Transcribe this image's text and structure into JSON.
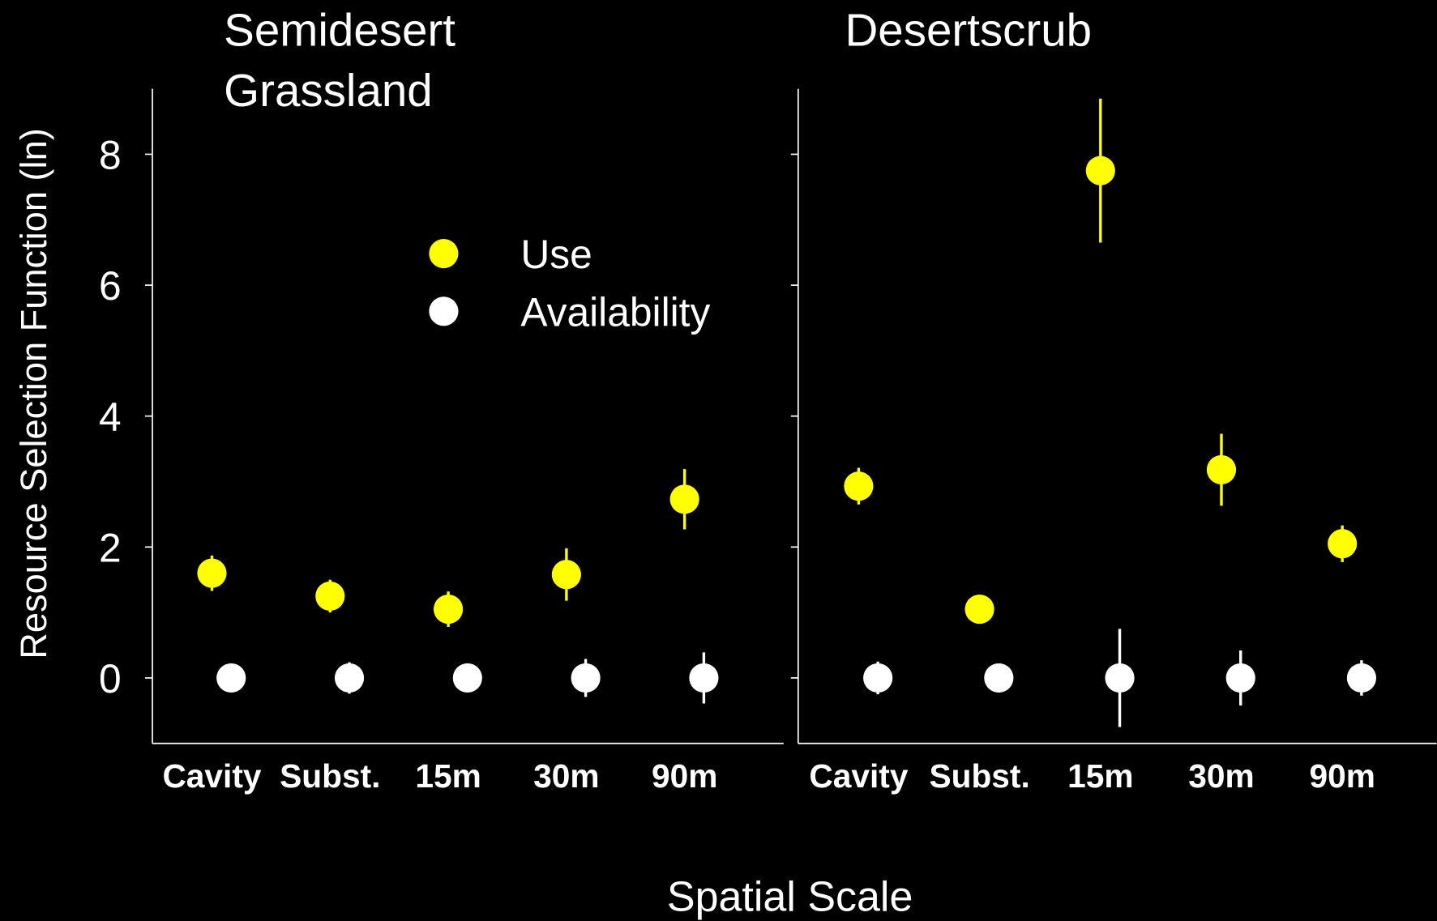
{
  "x_label": "Spatial Scale",
  "chart_data": [
    {
      "type": "dot",
      "title": "Semidesert Grassland",
      "y_label": "Resource Selection Function (ln)",
      "categories": [
        "Cavity",
        "Subst.",
        "15m",
        "30m",
        "90m"
      ],
      "series": [
        {
          "name": "Use",
          "color": "#ffff00",
          "values": [
            1.6,
            1.25,
            1.05,
            1.58,
            2.73
          ],
          "errors": [
            0.27,
            0.25,
            0.27,
            0.4,
            0.46
          ]
        },
        {
          "name": "Availability",
          "color": "#ffffff",
          "values": [
            0,
            0,
            0,
            0,
            0
          ],
          "errors": [
            0.1,
            0.24,
            0.1,
            0.29,
            0.39
          ]
        }
      ],
      "ylim": [
        -1,
        9
      ],
      "yticks": [
        0,
        2,
        4,
        6,
        8
      ],
      "legend": "upper center"
    },
    {
      "type": "dot",
      "title": "Desertscrub",
      "categories": [
        "Cavity",
        "Subst.",
        "15m",
        "30m",
        "90m"
      ],
      "series": [
        {
          "color": "#ffff00",
          "values": [
            2.93,
            1.05,
            7.75,
            3.18,
            2.05
          ],
          "errors": [
            0.28,
            0.1,
            1.1,
            0.55,
            0.28
          ]
        },
        {
          "color": "#ffffff",
          "values": [
            0,
            0,
            0,
            0,
            0
          ],
          "errors": [
            0.25,
            0.1,
            0.75,
            0.42,
            0.27
          ]
        }
      ],
      "ylim": [
        -1,
        9
      ],
      "yticks": [
        0,
        2,
        4,
        6,
        8
      ]
    }
  ]
}
